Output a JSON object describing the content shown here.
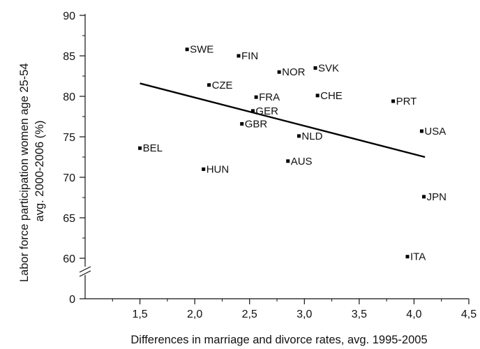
{
  "chart_data": {
    "type": "scatter",
    "title": "",
    "xlabel": "Differences in marriage and divorce rates, avg. 1995-2005",
    "ylabel": "Labor force participation women age 25-54 avg. 2000-2006 (%)",
    "ylabel_lines": [
      "Labor force participation women age 25-54",
      "avg. 2000-2006 (%)"
    ],
    "xlim": [
      1.0,
      4.5
    ],
    "ylim_upper": [
      57.5,
      90
    ],
    "y_axis_break": "between 0 and 57.5",
    "grid": false,
    "x_ticks": [
      1.5,
      2.0,
      2.5,
      3.0,
      3.5,
      4.0,
      4.5
    ],
    "x_tick_labels": [
      "1,5",
      "2,0",
      "2,5",
      "3,0",
      "3,5",
      "4,0",
      "4,5"
    ],
    "y_ticks": [
      0,
      60,
      65,
      70,
      75,
      80,
      85,
      90
    ],
    "y_tick_labels": [
      "0",
      "60",
      "65",
      "70",
      "75",
      "80",
      "85",
      "90"
    ],
    "points": [
      {
        "label": "SWE",
        "x": 1.93,
        "y": 85.8
      },
      {
        "label": "FIN",
        "x": 2.4,
        "y": 85.0
      },
      {
        "label": "NOR",
        "x": 2.77,
        "y": 83.0
      },
      {
        "label": "SVK",
        "x": 3.1,
        "y": 83.5
      },
      {
        "label": "CZE",
        "x": 2.13,
        "y": 81.4
      },
      {
        "label": "FRA",
        "x": 2.56,
        "y": 79.9
      },
      {
        "label": "CHE",
        "x": 3.12,
        "y": 80.1
      },
      {
        "label": "PRT",
        "x": 3.81,
        "y": 79.4
      },
      {
        "label": "GER",
        "x": 2.53,
        "y": 78.2
      },
      {
        "label": "GBR",
        "x": 2.43,
        "y": 76.6
      },
      {
        "label": "USA",
        "x": 4.07,
        "y": 75.7
      },
      {
        "label": "NLD",
        "x": 2.95,
        "y": 75.1
      },
      {
        "label": "BEL",
        "x": 1.5,
        "y": 73.6
      },
      {
        "label": "AUS",
        "x": 2.85,
        "y": 72.0
      },
      {
        "label": "HUN",
        "x": 2.08,
        "y": 71.0
      },
      {
        "label": "JPN",
        "x": 4.09,
        "y": 67.6
      },
      {
        "label": "ITA",
        "x": 3.94,
        "y": 60.2
      }
    ],
    "trend_line": {
      "x": [
        1.5,
        4.1
      ],
      "y": [
        81.6,
        72.5
      ]
    }
  }
}
